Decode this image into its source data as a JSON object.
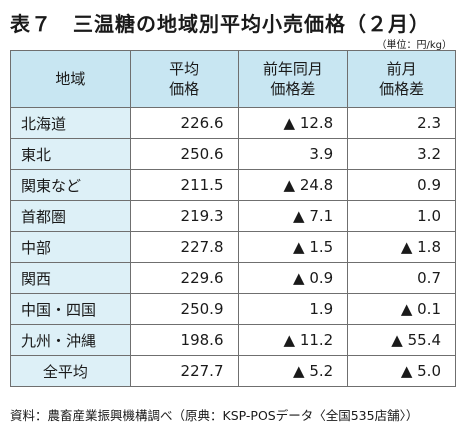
{
  "title": "表７　三温糖の地域別平均小売価格（２月）",
  "unit": "（単位：円/kg）",
  "headers": {
    "region": "地域",
    "avg_line1": "平均",
    "avg_line2": "価格",
    "yoy_line1": "前年同月",
    "yoy_line2": "価格差",
    "mom_line1": "前月",
    "mom_line2": "価格差"
  },
  "rows": [
    {
      "region": "北海道",
      "price": "226.6",
      "yoy": "▲ 12.8",
      "mom": "2.3"
    },
    {
      "region": "東北",
      "price": "250.6",
      "yoy": "3.9",
      "mom": "3.2"
    },
    {
      "region": "関東など",
      "price": "211.5",
      "yoy": "▲ 24.8",
      "mom": "0.9"
    },
    {
      "region": "首都圏",
      "price": "219.3",
      "yoy": "▲ 7.1",
      "mom": "1.0"
    },
    {
      "region": "中部",
      "price": "227.8",
      "yoy": "▲ 1.5",
      "mom": "▲ 1.8"
    },
    {
      "region": "関西",
      "price": "229.6",
      "yoy": "▲ 0.9",
      "mom": "0.7"
    },
    {
      "region": "中国・四国",
      "price": "250.9",
      "yoy": "1.9",
      "mom": "▲ 0.1"
    },
    {
      "region": "九州・沖縄",
      "price": "198.6",
      "yoy": "▲ 11.2",
      "mom": "▲ 55.4"
    },
    {
      "region": "全平均",
      "price": "227.7",
      "yoy": "▲ 5.2",
      "mom": "▲ 5.0"
    }
  ],
  "source": "資料：農畜産業振興機構調べ（原典：KSP-POSデータ〈全国535店舗〉）",
  "colors": {
    "header_bg": "#c8e6f2",
    "label_bg": "#ddf0f7",
    "border": "#6f6f6f"
  }
}
